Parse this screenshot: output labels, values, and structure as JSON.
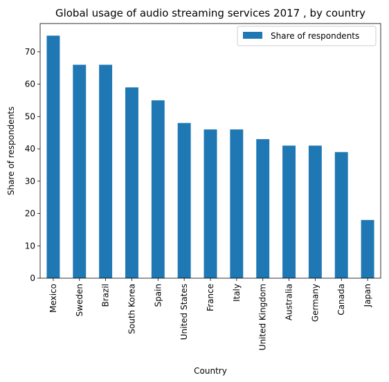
{
  "chart_data": {
    "type": "bar",
    "title": "Global usage of audio streaming services 2017 , by country",
    "xlabel": "Country",
    "ylabel": "Share of respondents",
    "categories": [
      "Mexico",
      "Sweden",
      "Brazil",
      "South Korea",
      "Spain",
      "United States",
      "France",
      "Italy",
      "United Kingdom",
      "Australia",
      "Germany",
      "Canada",
      "Japan"
    ],
    "series": [
      {
        "name": "Share of respondents",
        "values": [
          75,
          66,
          66,
          59,
          55,
          48,
          46,
          46,
          43,
          41,
          41,
          39,
          18
        ]
      }
    ],
    "ylim": [
      0,
      78.75
    ],
    "yticks": [
      0,
      10,
      20,
      30,
      40,
      50,
      60,
      70
    ],
    "grid": false,
    "legend_position": "top-right",
    "bar_color": "#1f77b4"
  }
}
